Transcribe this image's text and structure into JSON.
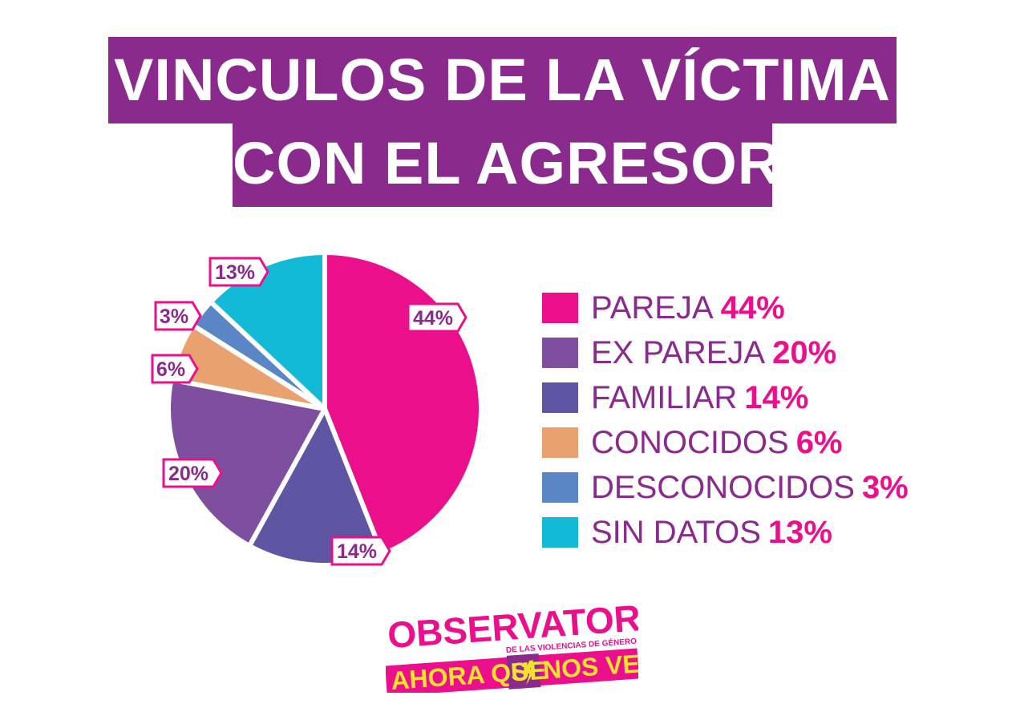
{
  "title_line1": "VINCULOS DE LA VÍCTIMA",
  "title_line2": "CON EL AGRESOR",
  "chart_data": {
    "type": "pie",
    "slices": [
      {
        "label": "PAREJA",
        "value": 44,
        "pct_label": "44%",
        "color": "#ec0f8c"
      },
      {
        "label": "FAMILIAR",
        "value": 14,
        "pct_label": "14%",
        "color": "#5e56a3"
      },
      {
        "label": "EX PAREJA",
        "value": 20,
        "pct_label": "20%",
        "color": "#7e4f9e"
      },
      {
        "label": "CONOCIDOS",
        "value": 6,
        "pct_label": "6%",
        "color": "#e8a16f"
      },
      {
        "label": "DESCONOCIDOS",
        "value": 3,
        "pct_label": "3%",
        "color": "#5b86c6"
      },
      {
        "label": "SIN DATOS",
        "value": 13,
        "pct_label": "13%",
        "color": "#12bad6"
      }
    ],
    "legend": [
      {
        "label": "PAREJA",
        "pct": "44%",
        "color": "#ec0f8c"
      },
      {
        "label": "EX PAREJA",
        "pct": "20%",
        "color": "#7e4f9e"
      },
      {
        "label": "FAMILIAR",
        "pct": "14%",
        "color": "#5e56a3"
      },
      {
        "label": "CONOCIDOS",
        "pct": "6%",
        "color": "#e8a16f"
      },
      {
        "label": "DESCONOCIDOS",
        "pct": "3%",
        "color": "#5b86c6"
      },
      {
        "label": "SIN DATOS",
        "pct": "13%",
        "color": "#12bad6"
      }
    ],
    "legend_placement": "right"
  },
  "logo": {
    "line1": "OBSERVATORIO",
    "subtitle": "DE LAS VIOLENCIAS DE GÉNERO",
    "line2_a": "AHORA QUE",
    "line2_b": "S",
    "line2_c": "NOS VEN"
  }
}
